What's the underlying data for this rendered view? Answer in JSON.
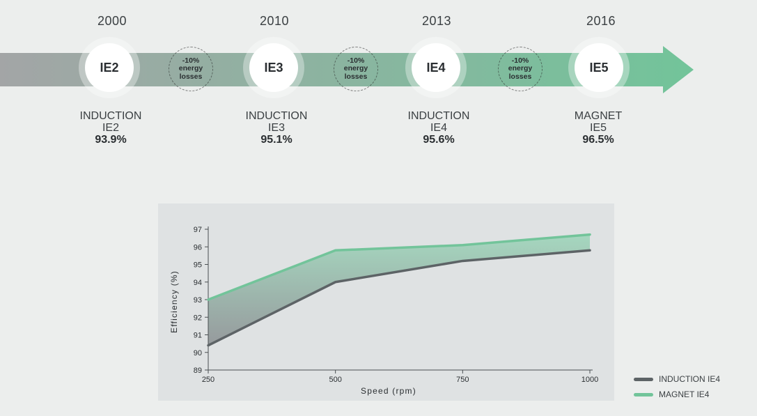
{
  "timeline": {
    "stages": [
      {
        "year": "2000",
        "badge": "IE2",
        "tech": "INDUCTION",
        "class": "IE2",
        "efficiency": "93.9%"
      },
      {
        "year": "2010",
        "badge": "IE3",
        "tech": "INDUCTION",
        "class": "IE3",
        "efficiency": "95.1%"
      },
      {
        "year": "2013",
        "badge": "IE4",
        "tech": "INDUCTION",
        "class": "IE4",
        "efficiency": "95.6%"
      },
      {
        "year": "2016",
        "badge": "IE5",
        "tech": "MAGNET",
        "class": "IE5",
        "efficiency": "96.5%"
      }
    ],
    "losses": [
      {
        "line1": "-10%",
        "line2": "energy",
        "line3": "losses"
      },
      {
        "line1": "-10%",
        "line2": "energy",
        "line3": "losses"
      },
      {
        "line1": "-10%",
        "line2": "energy",
        "line3": "losses"
      }
    ],
    "colors": {
      "start": "#a3a5a6",
      "end": "#72c49a"
    }
  },
  "chart_data": {
    "type": "area",
    "x": [
      250,
      500,
      750,
      1000
    ],
    "series": [
      {
        "name": "INDUCTION IE4",
        "values": [
          90.4,
          94.0,
          95.2,
          95.8
        ],
        "color": "#5d6366"
      },
      {
        "name": "MAGNET IE4",
        "values": [
          93.0,
          95.8,
          96.1,
          96.7
        ],
        "color": "#72c49a"
      }
    ],
    "xlabel": "Speed (rpm)",
    "ylabel": "Efficiency (%)",
    "xticks": [
      "250",
      "500",
      "750",
      "1000"
    ],
    "yticks": [
      "89",
      "90",
      "91",
      "92",
      "93",
      "94",
      "95",
      "96",
      "97"
    ],
    "ylim": [
      89,
      97
    ],
    "xlim": [
      250,
      1000
    ],
    "grid": false,
    "legend_position": "right-bottom, outside"
  }
}
